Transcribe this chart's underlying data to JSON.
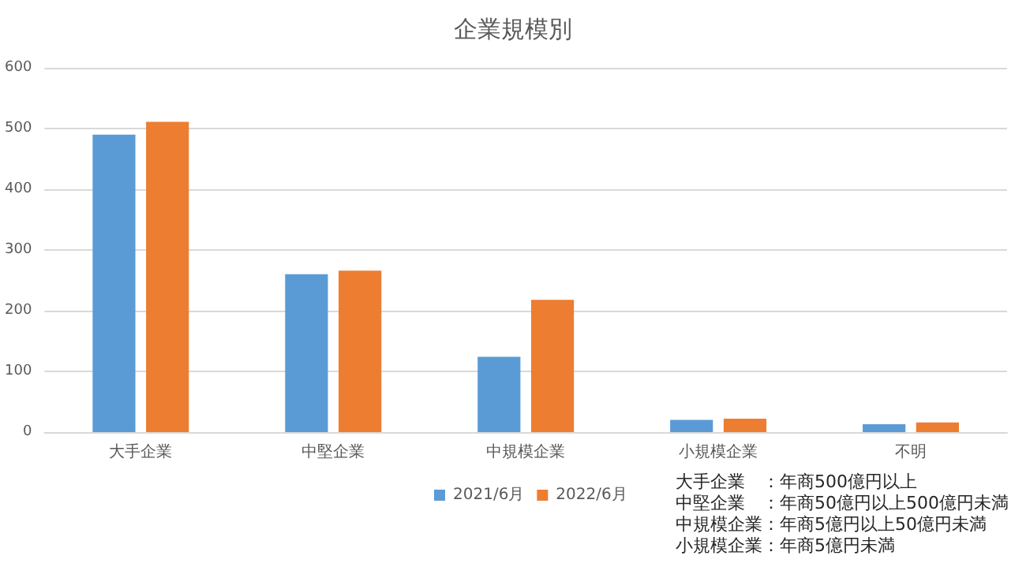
{
  "chart_data": {
    "type": "bar",
    "title": "企業規模別",
    "categories": [
      "大手企業",
      "中堅企業",
      "中規模企業",
      "小規模企業",
      "不明"
    ],
    "series": [
      {
        "name": "2021/6月",
        "color": "#5b9bd5",
        "values": [
          490,
          260,
          124,
          20,
          13
        ]
      },
      {
        "name": "2022/6月",
        "color": "#ed7d31",
        "values": [
          511,
          266,
          218,
          22,
          16
        ]
      }
    ],
    "ylim": [
      0,
      600
    ],
    "yticks": [
      0,
      100,
      200,
      300,
      400,
      500,
      600
    ],
    "grid": "y",
    "legend": "bottom",
    "annotations": [
      "大手企業　：年商500億円以上",
      "中堅企業　：年商50億円以上500億円未満",
      "中規模企業：年商5億円以上50億円未満",
      "小規模企業：年商5億円未満"
    ]
  }
}
